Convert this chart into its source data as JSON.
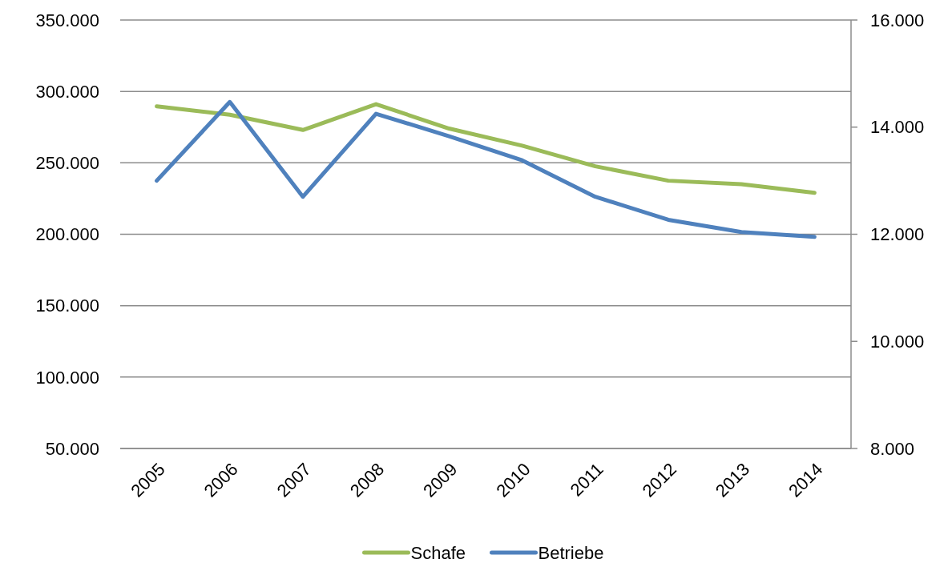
{
  "chart_data": {
    "type": "line",
    "categories": [
      "2005",
      "2006",
      "2007",
      "2008",
      "2009",
      "2010",
      "2011",
      "2012",
      "2013",
      "2014"
    ],
    "series": [
      {
        "name": "Schafe",
        "color": "#9bbb59",
        "values": [
          289600,
          283700,
          273000,
          291100,
          274000,
          262000,
          247600,
          237500,
          235000,
          229000
        ]
      },
      {
        "name": "Betriebe",
        "color": "#4f81bd",
        "axis": "y2",
        "values": [
          13000,
          14470,
          12700,
          14250,
          13830,
          13380,
          12700,
          12270,
          12040,
          11950
        ]
      }
    ],
    "ylim": [
      50000,
      350000
    ],
    "yticks": [
      {
        "value": 50000,
        "label": "50.000"
      },
      {
        "value": 100000,
        "label": "100.000"
      },
      {
        "value": 150000,
        "label": "150.000"
      },
      {
        "value": 200000,
        "label": "200.000"
      },
      {
        "value": 250000,
        "label": "250.000"
      },
      {
        "value": 300000,
        "label": "300.000"
      },
      {
        "value": 350000,
        "label": "350.000"
      }
    ],
    "y2lim": [
      8000,
      16000
    ],
    "y2ticks": [
      {
        "value": 8000,
        "label": "8.000"
      },
      {
        "value": 10000,
        "label": "10.000"
      },
      {
        "value": 12000,
        "label": "12.000"
      },
      {
        "value": 14000,
        "label": "14.000"
      },
      {
        "value": 16000,
        "label": "16.000"
      }
    ],
    "grid": "y",
    "legend": "bottom"
  }
}
